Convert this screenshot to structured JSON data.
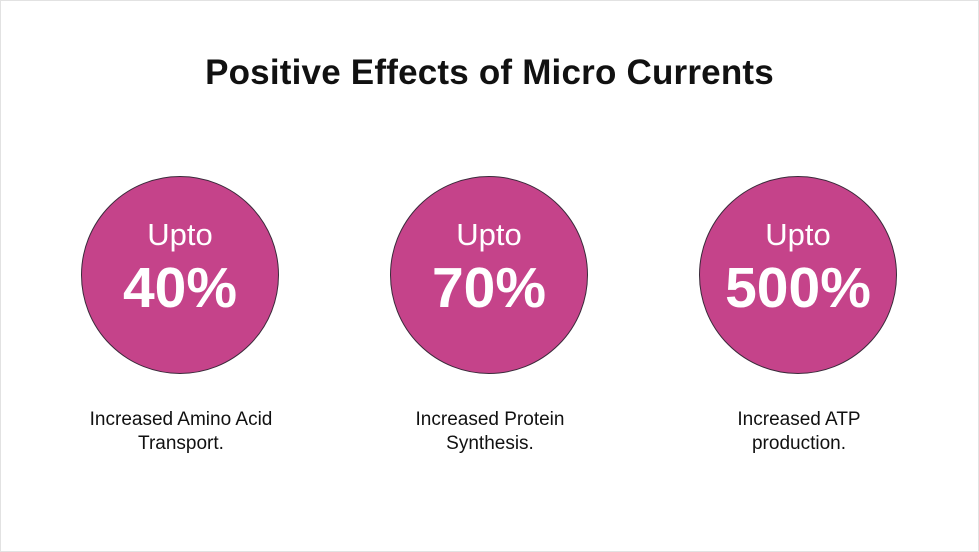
{
  "title": "Positive Effects of Micro Currents",
  "colors": {
    "circle_fill": "#c5438a",
    "circle_text": "#ffffff",
    "body_text": "#111111"
  },
  "stats": [
    {
      "prefix": "Upto",
      "value": "40%",
      "caption_line1": "Increased Amino Acid",
      "caption_line2": "Transport."
    },
    {
      "prefix": "Upto",
      "value": "70%",
      "caption_line1": "Increased Protein",
      "caption_line2": "Synthesis."
    },
    {
      "prefix": "Upto",
      "value": "500%",
      "caption_line1": "Increased ATP",
      "caption_line2": "production."
    }
  ]
}
